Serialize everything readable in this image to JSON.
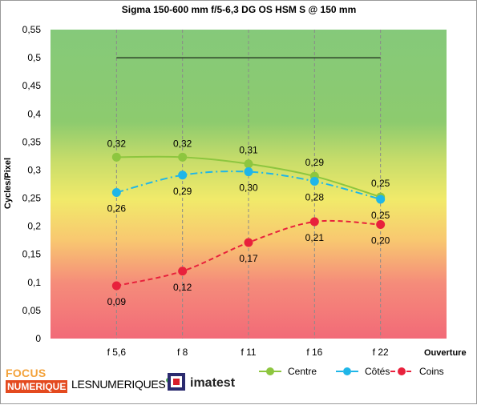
{
  "chart_data": {
    "type": "line",
    "title": "Sigma 150-600 mm f/5-6,3 DG OS HSM S @  150 mm",
    "ylabel": "Cycles/Pixel",
    "xlabel": "Ouverture",
    "categories": [
      "f 5,6",
      "f 8",
      "f 11",
      "f 16",
      "f 22"
    ],
    "ylim": [
      0,
      0.55
    ],
    "yticks": [
      "0",
      "0,05",
      "0,1",
      "0,15",
      "0,2",
      "0,25",
      "0,3",
      "0,35",
      "0,4",
      "0,45",
      "0,5",
      "0,55"
    ],
    "reference_line": 0.5,
    "grid": "vertical dashed",
    "legend_position": "bottom-right",
    "series": [
      {
        "name": "Centre",
        "color": "#8dc63f",
        "style": "solid",
        "values": [
          0.323,
          0.323,
          0.311,
          0.289,
          0.252
        ],
        "labels": [
          "0,32",
          "0,32",
          "0,31",
          "0,29",
          "0,25"
        ]
      },
      {
        "name": "Côtés",
        "color": "#1fb6e8",
        "style": "dashdot",
        "values": [
          0.26,
          0.291,
          0.297,
          0.28,
          0.248
        ],
        "labels": [
          "0,26",
          "0,29",
          "0,30",
          "0,28",
          "0,25"
        ]
      },
      {
        "name": "Coins",
        "color": "#e8213c",
        "style": "dashed",
        "values": [
          0.094,
          0.12,
          0.171,
          0.208,
          0.203
        ],
        "labels": [
          "0,09",
          "0,12",
          "0,17",
          "0,21",
          "0,20"
        ]
      }
    ]
  },
  "logos": {
    "focus_top": "FOCUS",
    "focus_bottom": "NUMERIQUE",
    "lesnumeriques": "LESNUMERIQUES",
    "imatest": "imatest"
  }
}
